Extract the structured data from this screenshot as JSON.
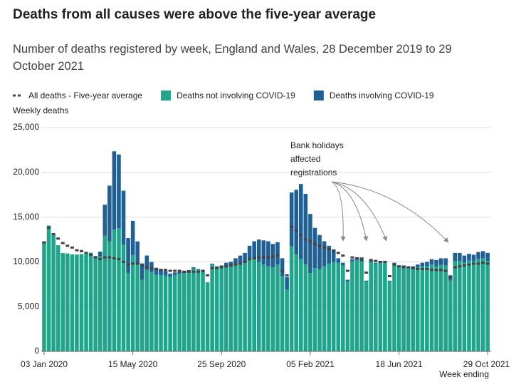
{
  "chart_data": {
    "type": "bar",
    "stacked": true,
    "title": "Deaths from all causes were above the five-year average",
    "subtitle": "Number of deaths registered by week, England and Wales, 28 December 2019 to 29 October 2021",
    "y_label": "Weekly deaths",
    "x_label": "Week ending",
    "annotation": [
      "Bank holidays",
      "affected",
      "registrations"
    ],
    "categories": [
      "03 Jan 2020",
      null,
      null,
      null,
      null,
      null,
      null,
      null,
      null,
      null,
      null,
      null,
      null,
      null,
      null,
      null,
      null,
      null,
      null,
      "15 May 2020",
      null,
      null,
      null,
      null,
      null,
      null,
      null,
      null,
      null,
      null,
      null,
      null,
      null,
      null,
      null,
      null,
      null,
      null,
      "25 Sep 2020",
      null,
      null,
      null,
      null,
      null,
      null,
      null,
      null,
      null,
      null,
      null,
      null,
      null,
      null,
      null,
      null,
      null,
      null,
      "05 Feb 2021",
      null,
      null,
      null,
      null,
      null,
      null,
      null,
      null,
      null,
      null,
      null,
      null,
      null,
      null,
      null,
      null,
      null,
      null,
      "18 Jun 2021",
      null,
      null,
      null,
      null,
      null,
      null,
      null,
      null,
      null,
      null,
      null,
      null,
      null,
      null,
      null,
      null,
      null,
      null,
      "29 Oct 2021"
    ],
    "series": [
      {
        "name": "All deaths - Five-year average",
        "type": "line",
        "color": "#414042",
        "values": [
          12175,
          13822,
          13100,
          12600,
          12100,
          11800,
          11600,
          11300,
          11200,
          11000,
          10800,
          10500,
          10300,
          10500,
          10500,
          10400,
          10300,
          10000,
          9700,
          9800,
          9800,
          9600,
          9400,
          9300,
          9200,
          9100,
          9100,
          9000,
          9000,
          9000,
          8900,
          8900,
          8900,
          8900,
          9000,
          8500,
          9300,
          9300,
          9400,
          9500,
          9600,
          9700,
          9800,
          10000,
          10300,
          10400,
          10500,
          10500,
          10500,
          10600,
          10700,
          9000,
          8500,
          13900,
          13500,
          13000,
          12500,
          12300,
          12000,
          11800,
          11600,
          11400,
          11200,
          11000,
          10700,
          9000,
          10500,
          10400,
          10200,
          8800,
          10200,
          10100,
          10000,
          10000,
          8400,
          9700,
          9500,
          9400,
          9400,
          9300,
          9200,
          9200,
          9200,
          9100,
          9100,
          9100,
          9000,
          8300,
          9400,
          9500,
          9600,
          9700,
          9800,
          9800,
          9900,
          9800
        ]
      },
      {
        "name": "Deaths not involving COVID-19",
        "type": "bar",
        "color": "#1fa58b",
        "values": [
          12254,
          14058,
          12990,
          11856,
          10986,
          10944,
          10841,
          10816,
          10871,
          10895,
          11019,
          10542,
          10602,
          12912,
          12303,
          13593,
          13760,
          11918,
          8727,
          10763,
          9699,
          8002,
          9121,
          8862,
          8556,
          8534,
          8447,
          8324,
          8528,
          8674,
          8752,
          8930,
          9253,
          9100,
          8880,
          7620,
          9700,
          9370,
          9400,
          9600,
          9600,
          9800,
          9800,
          9900,
          10400,
          10300,
          10000,
          9700,
          9500,
          9400,
          9700,
          8400,
          6900,
          11750,
          10800,
          10300,
          9700,
          8750,
          9300,
          9200,
          9500,
          9800,
          10000,
          9900,
          9600,
          7800,
          10050,
          10200,
          10350,
          7800,
          9980,
          9800,
          10000,
          9900,
          7820,
          9810,
          9400,
          9480,
          9250,
          9300,
          9400,
          9500,
          9500,
          9700,
          9500,
          9650,
          9600,
          7900,
          10100,
          10100,
          9900,
          10150,
          10050,
          10300,
          10400,
          10100
        ]
      },
      {
        "name": "Deaths involving COVID-19",
        "type": "bar",
        "color": "#206095",
        "values": [
          0,
          0,
          0,
          0,
          0,
          0,
          0,
          0,
          0,
          0,
          0,
          103,
          539,
          3475,
          6213,
          8758,
          8237,
          6035,
          3930,
          3810,
          2589,
          1822,
          1588,
          1114,
          783,
          606,
          532,
          366,
          295,
          217,
          193,
          152,
          139,
          100,
          120,
          80,
          100,
          130,
          200,
          300,
          400,
          600,
          900,
          1100,
          1400,
          2000,
          2500,
          2700,
          2800,
          2600,
          2500,
          2000,
          1400,
          6000,
          7250,
          8400,
          7900,
          6600,
          4500,
          3800,
          2800,
          2000,
          1400,
          500,
          300,
          200,
          250,
          200,
          150,
          100,
          120,
          100,
          100,
          100,
          80,
          90,
          100,
          120,
          150,
          200,
          300,
          400,
          500,
          600,
          700,
          750,
          800,
          600,
          900,
          900,
          800,
          750,
          750,
          800,
          800,
          900
        ]
      }
    ],
    "ylim": [
      0,
      25000
    ],
    "yticks": [
      0,
      {
        "value": 5000,
        "label": "5,000"
      },
      {
        "value": 10000,
        "label": "10,000"
      },
      {
        "value": 15000,
        "label": "15,000"
      },
      {
        "value": 20000,
        "label": "20,000"
      },
      {
        "value": 25000,
        "label": "25,000"
      }
    ],
    "grid": true
  }
}
